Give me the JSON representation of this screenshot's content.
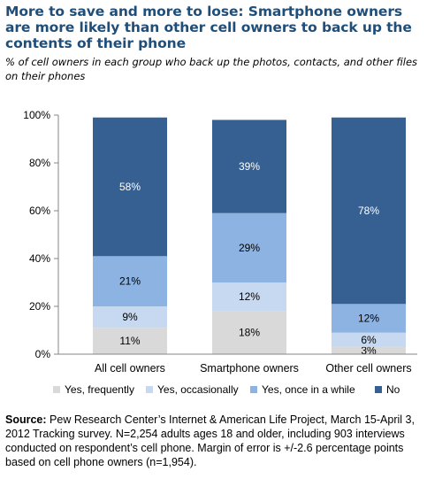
{
  "title": "More to save and more to lose: Smartphone owners are more likely than other cell owners to back up the contents of their phone",
  "subtitle": "% of cell owners in each group who back up the photos, contacts, and other files on their phones",
  "chart_data": {
    "type": "bar",
    "stacked": true,
    "categories": [
      "All cell owners",
      "Smartphone owners",
      "Other cell owners"
    ],
    "series": [
      {
        "name": "Yes, frequently",
        "color": "#d9d9d9",
        "values": [
          11,
          18,
          3
        ],
        "labels": [
          "11%",
          "18%",
          "3%"
        ]
      },
      {
        "name": "Yes, occasionally",
        "color": "#c6d9f1",
        "values": [
          9,
          12,
          6
        ],
        "labels": [
          "9%",
          "12%",
          "6%"
        ]
      },
      {
        "name": "Yes, once in a while",
        "color": "#8db3e2",
        "values": [
          21,
          29,
          12
        ],
        "labels": [
          "21%",
          "29%",
          "12%"
        ]
      },
      {
        "name": "No",
        "color": "#366092",
        "values": [
          58,
          39,
          78
        ],
        "labels": [
          "58%",
          "39%",
          "78%"
        ]
      }
    ],
    "yticks": [
      "0%",
      "20%",
      "40%",
      "60%",
      "80%",
      "100%"
    ],
    "ylim": [
      0,
      100
    ],
    "legend_position": "bottom"
  },
  "note": {
    "source_label": "Source:",
    "source_text": "Pew Research Center’s Internet & American Life Project, March 15-April 3, 2012 Tracking survey. N=2,254 adults ages 18 and older, including 903 interviews conducted on respondent’s cell phone. Margin of error is +/-2.6 percentage points based on cell phone owners (n=1,954)."
  }
}
